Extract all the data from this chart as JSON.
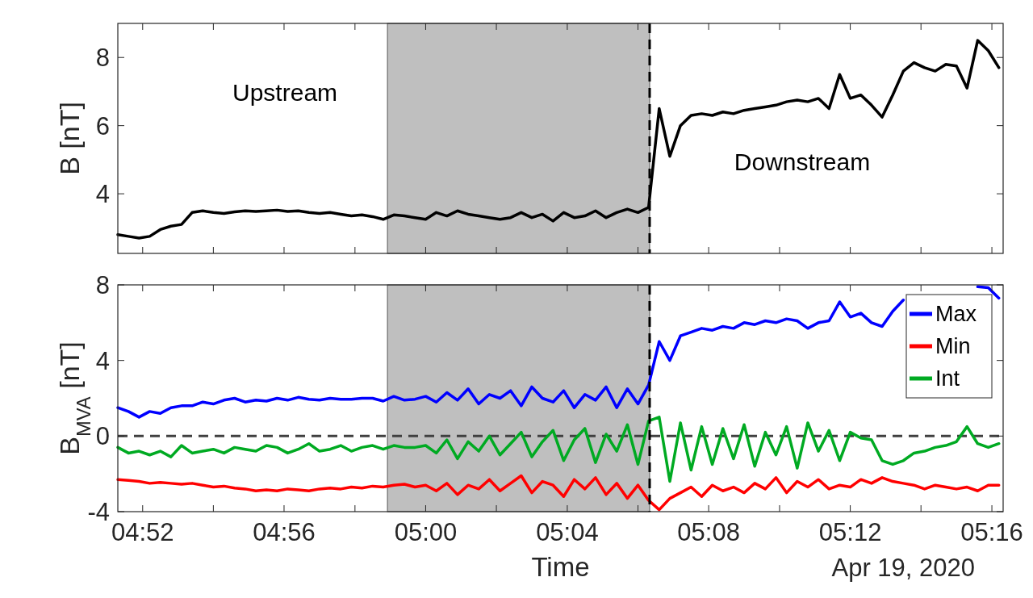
{
  "chart_data": [
    {
      "type": "line",
      "ylabel": "B [nT]",
      "xlim": [
        4.855,
        5.272
      ],
      "ylim": [
        2.25,
        9
      ],
      "yticks": [
        4,
        6,
        8
      ],
      "xticks": [
        {
          "value": 4.8667,
          "label": null
        },
        {
          "value": 4.9,
          "label": null
        },
        {
          "value": 4.9333,
          "label": null
        },
        {
          "value": 4.9667,
          "label": null
        },
        {
          "value": 5.0,
          "label": null
        },
        {
          "value": 5.0333,
          "label": null
        },
        {
          "value": 5.0667,
          "label": null
        },
        {
          "value": 5.1,
          "label": null
        },
        {
          "value": 5.1333,
          "label": null
        },
        {
          "value": 5.1667,
          "label": null
        },
        {
          "value": 5.2,
          "label": null
        },
        {
          "value": 5.2333,
          "label": null
        },
        {
          "value": 5.2667,
          "label": null
        }
      ],
      "tick_labels": "y",
      "grid": false,
      "legend": false,
      "x": [
        4.855,
        4.86,
        4.865,
        4.87,
        4.875,
        4.88,
        4.885,
        4.89,
        4.895,
        4.9,
        4.905,
        4.91,
        4.915,
        4.92,
        4.925,
        4.93,
        4.935,
        4.94,
        4.945,
        4.95,
        4.955,
        4.96,
        4.965,
        4.97,
        4.975,
        4.98,
        4.985,
        4.99,
        4.995,
        5.0,
        5.005,
        5.01,
        5.015,
        5.02,
        5.025,
        5.03,
        5.035,
        5.04,
        5.045,
        5.05,
        5.055,
        5.06,
        5.065,
        5.07,
        5.075,
        5.08,
        5.085,
        5.09,
        5.095,
        5.1,
        5.105,
        5.11,
        5.115,
        5.12,
        5.125,
        5.13,
        5.135,
        5.14,
        5.145,
        5.15,
        5.155,
        5.16,
        5.165,
        5.17,
        5.175,
        5.18,
        5.185,
        5.19,
        5.195,
        5.2,
        5.205,
        5.21,
        5.215,
        5.22,
        5.225,
        5.23,
        5.235,
        5.24,
        5.245,
        5.25,
        5.255,
        5.26,
        5.265,
        5.27
      ],
      "series": [
        {
          "color": "#000000",
          "values": [
            2.8,
            2.75,
            2.7,
            2.75,
            2.95,
            3.05,
            3.1,
            3.45,
            3.5,
            3.45,
            3.42,
            3.47,
            3.5,
            3.48,
            3.5,
            3.52,
            3.48,
            3.5,
            3.45,
            3.42,
            3.45,
            3.4,
            3.35,
            3.38,
            3.33,
            3.25,
            3.38,
            3.35,
            3.3,
            3.25,
            3.45,
            3.35,
            3.5,
            3.4,
            3.35,
            3.3,
            3.25,
            3.3,
            3.45,
            3.3,
            3.4,
            3.2,
            3.45,
            3.3,
            3.35,
            3.5,
            3.3,
            3.45,
            3.55,
            3.45,
            3.6,
            6.5,
            5.1,
            6.0,
            6.3,
            6.35,
            6.3,
            6.4,
            6.35,
            6.45,
            6.5,
            6.55,
            6.6,
            6.7,
            6.75,
            6.7,
            6.8,
            6.5,
            7.5,
            6.8,
            6.9,
            6.6,
            6.25,
            6.9,
            7.6,
            7.85,
            7.7,
            7.6,
            7.8,
            7.75,
            7.1,
            8.5,
            8.2,
            7.7
          ]
        }
      ],
      "bands": [
        {
          "axis": "x",
          "from": 4.982,
          "to": 5.1055,
          "color": "#bfbfbf"
        }
      ],
      "ref_lines": [
        {
          "axis": "x",
          "value": 5.1055,
          "color": "#000000",
          "line_style": "dashed"
        }
      ],
      "annotations": [
        "Upstream",
        "Downstream"
      ]
    },
    {
      "type": "line",
      "ylabel": "B$_{MVA}$ [nT]",
      "xlabel": "Time",
      "xlim": [
        4.855,
        5.272
      ],
      "ylim": [
        -4,
        8
      ],
      "yticks": [
        -4,
        0,
        4,
        8
      ],
      "xticks": [
        {
          "value": 4.8667,
          "label": "04:52"
        },
        {
          "value": 4.9,
          "label": null
        },
        {
          "value": 4.9333,
          "label": "04:56"
        },
        {
          "value": 4.9667,
          "label": null
        },
        {
          "value": 5.0,
          "label": "05:00"
        },
        {
          "value": 5.0333,
          "label": null
        },
        {
          "value": 5.0667,
          "label": "05:04"
        },
        {
          "value": 5.1,
          "label": null
        },
        {
          "value": 5.1333,
          "label": "05:08"
        },
        {
          "value": 5.1667,
          "label": null
        },
        {
          "value": 5.2,
          "label": "05:12"
        },
        {
          "value": 5.2333,
          "label": null
        },
        {
          "value": 5.2667,
          "label": "05:16"
        }
      ],
      "grid": false,
      "legend": "top right",
      "x": [
        4.855,
        4.86,
        4.865,
        4.87,
        4.875,
        4.88,
        4.885,
        4.89,
        4.895,
        4.9,
        4.905,
        4.91,
        4.915,
        4.92,
        4.925,
        4.93,
        4.935,
        4.94,
        4.945,
        4.95,
        4.955,
        4.96,
        4.965,
        4.97,
        4.975,
        4.98,
        4.985,
        4.99,
        4.995,
        5.0,
        5.005,
        5.01,
        5.015,
        5.02,
        5.025,
        5.03,
        5.035,
        5.04,
        5.045,
        5.05,
        5.055,
        5.06,
        5.065,
        5.07,
        5.075,
        5.08,
        5.085,
        5.09,
        5.095,
        5.1,
        5.105,
        5.11,
        5.115,
        5.12,
        5.125,
        5.13,
        5.135,
        5.14,
        5.145,
        5.15,
        5.155,
        5.16,
        5.165,
        5.17,
        5.175,
        5.18,
        5.185,
        5.19,
        5.195,
        5.2,
        5.205,
        5.21,
        5.215,
        5.22,
        5.225,
        5.23,
        5.235,
        5.24,
        5.245,
        5.25,
        5.255,
        5.26,
        5.265,
        5.27
      ],
      "series": [
        {
          "name": "Max",
          "color": "#0000ff",
          "values": [
            1.5,
            1.3,
            1.0,
            1.3,
            1.2,
            1.5,
            1.6,
            1.6,
            1.8,
            1.7,
            1.9,
            2.0,
            1.8,
            1.9,
            1.85,
            2.0,
            1.9,
            2.05,
            1.95,
            1.9,
            2.0,
            1.95,
            1.95,
            2.0,
            2.0,
            1.85,
            2.1,
            1.9,
            1.95,
            2.1,
            1.8,
            2.3,
            1.9,
            2.5,
            1.7,
            2.2,
            2.0,
            2.4,
            1.6,
            2.6,
            2.0,
            1.8,
            2.4,
            1.5,
            2.2,
            1.9,
            2.6,
            1.5,
            2.5,
            1.7,
            2.7,
            5.0,
            4.0,
            5.3,
            5.5,
            5.7,
            5.6,
            5.8,
            5.7,
            6.0,
            5.9,
            6.1,
            6.0,
            6.2,
            6.1,
            5.7,
            6.0,
            6.1,
            7.1,
            6.3,
            6.5,
            6.0,
            5.8,
            6.6,
            7.2,
            null,
            null,
            null,
            null,
            null,
            null,
            7.9,
            7.85,
            7.3
          ]
        },
        {
          "name": "Min",
          "color": "#ff0000",
          "values": [
            -2.3,
            -2.35,
            -2.4,
            -2.5,
            -2.45,
            -2.5,
            -2.55,
            -2.5,
            -2.6,
            -2.7,
            -2.65,
            -2.75,
            -2.8,
            -2.9,
            -2.85,
            -2.9,
            -2.8,
            -2.85,
            -2.9,
            -2.8,
            -2.75,
            -2.8,
            -2.7,
            -2.75,
            -2.65,
            -2.7,
            -2.6,
            -2.55,
            -2.7,
            -2.6,
            -2.9,
            -2.5,
            -3.1,
            -2.6,
            -2.8,
            -2.3,
            -2.9,
            -2.5,
            -2.1,
            -3.0,
            -2.4,
            -2.6,
            -3.2,
            -2.3,
            -2.8,
            -2.2,
            -3.1,
            -2.5,
            -3.3,
            -2.6,
            -3.4,
            -3.9,
            -3.3,
            -3.0,
            -2.7,
            -3.2,
            -2.6,
            -2.9,
            -2.7,
            -3.0,
            -2.5,
            -2.8,
            -2.2,
            -3.0,
            -2.4,
            -2.7,
            -2.3,
            -2.8,
            -2.6,
            -2.7,
            -2.3,
            -2.5,
            -2.2,
            -2.4,
            -2.5,
            -2.6,
            -2.8,
            -2.6,
            -2.7,
            -2.8,
            -2.7,
            -2.9,
            -2.6,
            -2.6
          ]
        },
        {
          "name": "Int",
          "color": "#00aa22",
          "values": [
            -0.6,
            -0.9,
            -0.8,
            -1.0,
            -0.8,
            -1.1,
            -0.5,
            -0.9,
            -0.8,
            -0.7,
            -0.9,
            -0.6,
            -0.7,
            -0.8,
            -0.5,
            -0.6,
            -0.9,
            -0.7,
            -0.4,
            -0.8,
            -0.7,
            -0.5,
            -0.8,
            -0.6,
            -0.5,
            -0.7,
            -0.5,
            -0.6,
            -0.6,
            -0.5,
            -0.9,
            -0.2,
            -1.2,
            -0.3,
            -0.8,
            0.0,
            -1.0,
            -0.4,
            0.2,
            -1.1,
            -0.3,
            0.3,
            -1.3,
            -0.2,
            0.4,
            -1.4,
            0.1,
            -0.8,
            0.6,
            -1.5,
            0.8,
            1.0,
            -2.4,
            0.7,
            -1.8,
            0.5,
            -1.5,
            0.4,
            -1.2,
            0.6,
            -1.6,
            0.2,
            -1.0,
            0.5,
            -1.7,
            0.7,
            -0.8,
            0.3,
            -1.3,
            0.2,
            -0.1,
            -0.2,
            -1.3,
            -1.5,
            -1.3,
            -0.9,
            -0.8,
            -0.6,
            -0.5,
            -0.3,
            0.5,
            -0.4,
            -0.6,
            -0.4
          ]
        }
      ],
      "bands": [
        {
          "axis": "x",
          "from": 4.982,
          "to": 5.1055,
          "color": "#bfbfbf"
        }
      ],
      "ref_lines": [
        {
          "axis": "x",
          "value": 5.1055,
          "color": "#000000",
          "line_style": "dashed"
        },
        {
          "axis": "y",
          "value": 0,
          "color": "#404040",
          "line_style": "dashed"
        }
      ],
      "annotations": [
        "Apr 19, 2020"
      ]
    }
  ]
}
